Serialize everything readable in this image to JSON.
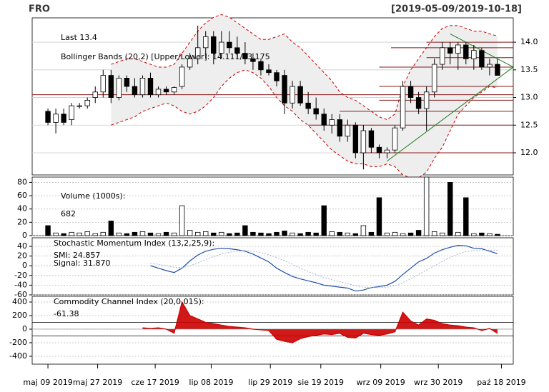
{
  "chart_data": [
    {
      "type": "candlestick",
      "title": "FRO",
      "subtitle": "[2019-05-09/2019-10-18]",
      "annotations": [
        "Last 13.4",
        "Bollinger Bands (20,2) [Upper/Lower]: 14.111/13.175"
      ],
      "open": [
        12.75,
        12.55,
        12.7,
        12.6,
        12.85,
        12.85,
        13.0,
        13.1,
        13.4,
        13.0,
        13.35,
        13.2,
        13.05,
        13.35,
        13.05,
        13.15,
        13.1,
        13.2,
        13.55,
        13.7,
        13.9,
        14.1,
        13.8,
        14.0,
        13.9,
        13.8,
        13.7,
        13.65,
        13.5,
        13.45,
        13.4,
        12.9,
        13.2,
        12.9,
        12.8,
        12.7,
        12.5,
        12.6,
        12.3,
        12.5,
        12.0,
        12.4,
        12.1,
        12.0,
        12.05,
        12.45,
        13.2,
        13.0,
        12.8,
        13.1,
        13.6,
        13.9,
        13.8,
        13.95,
        13.7,
        13.85,
        13.55,
        13.6
      ],
      "high": [
        12.8,
        12.8,
        12.8,
        12.9,
        12.9,
        13.0,
        13.2,
        13.5,
        13.5,
        13.4,
        13.4,
        13.35,
        13.4,
        13.45,
        13.2,
        13.2,
        13.2,
        13.6,
        13.8,
        14.3,
        14.2,
        14.2,
        14.2,
        14.2,
        14.1,
        14.0,
        13.8,
        13.7,
        13.6,
        13.5,
        13.5,
        13.3,
        13.3,
        13.1,
        13.0,
        12.8,
        12.7,
        12.7,
        12.6,
        12.55,
        12.5,
        12.45,
        12.15,
        12.1,
        12.5,
        13.3,
        13.3,
        13.1,
        13.2,
        13.7,
        14.0,
        14.0,
        14.0,
        14.0,
        13.95,
        13.9,
        13.7,
        13.7
      ],
      "low": [
        12.5,
        12.35,
        12.5,
        12.5,
        12.8,
        12.8,
        12.9,
        13.0,
        12.9,
        12.95,
        13.1,
        13.0,
        13.0,
        13.0,
        13.0,
        13.05,
        13.05,
        13.15,
        13.5,
        13.6,
        13.7,
        13.6,
        13.7,
        13.8,
        13.7,
        13.6,
        13.5,
        13.4,
        13.4,
        13.2,
        12.7,
        12.8,
        12.85,
        12.7,
        12.6,
        12.4,
        12.35,
        12.2,
        12.2,
        11.9,
        11.7,
        12.0,
        11.9,
        11.9,
        12.0,
        12.4,
        12.9,
        12.7,
        12.4,
        13.0,
        13.5,
        13.6,
        13.5,
        13.6,
        13.5,
        13.5,
        13.4,
        13.4
      ],
      "close": [
        12.55,
        12.7,
        12.55,
        12.85,
        12.85,
        12.95,
        13.1,
        13.4,
        13.0,
        13.35,
        13.2,
        13.05,
        13.35,
        13.05,
        13.15,
        13.1,
        13.18,
        13.55,
        13.7,
        13.9,
        14.1,
        13.8,
        14.0,
        13.9,
        13.8,
        13.7,
        13.65,
        13.5,
        13.45,
        13.3,
        12.9,
        13.2,
        12.9,
        12.8,
        12.7,
        12.5,
        12.6,
        12.3,
        12.5,
        12.0,
        12.4,
        12.1,
        12.0,
        12.05,
        12.45,
        13.2,
        13.0,
        12.8,
        13.1,
        13.6,
        13.9,
        13.8,
        13.95,
        13.7,
        13.85,
        13.55,
        13.6,
        13.4
      ],
      "bb_upper": [
        null,
        null,
        null,
        null,
        null,
        null,
        null,
        null,
        13.6,
        13.65,
        13.7,
        13.7,
        13.65,
        13.6,
        13.55,
        13.55,
        13.6,
        13.8,
        14.0,
        14.2,
        14.35,
        14.45,
        14.5,
        14.45,
        14.35,
        14.25,
        14.15,
        14.05,
        14.05,
        14.1,
        14.15,
        14.0,
        13.9,
        13.75,
        13.6,
        13.45,
        13.3,
        13.1,
        13.0,
        12.95,
        12.85,
        12.75,
        12.65,
        12.6,
        12.7,
        13.2,
        13.5,
        13.7,
        13.9,
        14.1,
        14.25,
        14.3,
        14.3,
        14.25,
        14.2,
        14.2,
        14.15,
        14.111
      ],
      "bb_lower": [
        null,
        null,
        null,
        null,
        null,
        null,
        null,
        null,
        12.5,
        12.55,
        12.6,
        12.65,
        12.75,
        12.8,
        12.85,
        12.9,
        12.85,
        12.75,
        12.7,
        12.75,
        12.85,
        13.0,
        13.2,
        13.35,
        13.45,
        13.5,
        13.45,
        13.35,
        13.2,
        13.0,
        12.85,
        12.75,
        12.6,
        12.5,
        12.35,
        12.2,
        12.05,
        11.95,
        11.85,
        11.8,
        11.8,
        11.75,
        11.75,
        11.8,
        11.75,
        11.6,
        11.55,
        11.55,
        11.65,
        11.9,
        12.1,
        12.4,
        12.7,
        12.85,
        13.0,
        13.1,
        13.2,
        13.175
      ],
      "levels": [
        {
          "value": 13.05,
          "from": -2
        },
        {
          "value": 12.5,
          "from": 33
        },
        {
          "value": 12.0,
          "from": 39.5
        },
        {
          "value": 12.75,
          "from": 37
        },
        {
          "value": 12.95,
          "from": 42
        },
        {
          "value": 13.2,
          "from": 42
        },
        {
          "value": 13.55,
          "from": 42
        },
        {
          "value": 13.72,
          "from": 48
        },
        {
          "value": 13.9,
          "from": 43.5
        },
        {
          "value": 14.0,
          "from": 48
        }
      ],
      "trend_lines": [
        {
          "x": [
            43,
            59
          ],
          "y": [
            11.85,
            13.55
          ]
        },
        {
          "x": [
            51,
            59
          ],
          "y": [
            14.15,
            13.55
          ]
        }
      ],
      "up_color": "#ffffff",
      "down_color": "#000000",
      "band_color": "#cc0000",
      "level_color": "#8b1a1a",
      "trend_color": "#1a7a1a",
      "xlim": [
        -2,
        59
      ],
      "ylim": [
        11.6,
        14.44
      ],
      "yticks": [
        {
          "value": 12,
          "label": "12.0"
        },
        12.5,
        {
          "value": 13,
          "label": "13.0"
        },
        13.5,
        {
          "value": 14,
          "label": "14.0"
        }
      ]
    },
    {
      "type": "bar",
      "annotations": [
        "Volume (1000s):",
        "682"
      ],
      "values": [
        15,
        4,
        3,
        5,
        4,
        6,
        3,
        5,
        22,
        4,
        3,
        5,
        6,
        4,
        3,
        5,
        4,
        45,
        8,
        5,
        6,
        4,
        5,
        3,
        4,
        15,
        5,
        4,
        3,
        5,
        7,
        4,
        3,
        5,
        4,
        45,
        6,
        5,
        4,
        3,
        15,
        5,
        57,
        4,
        5,
        3,
        4,
        8,
        88,
        6,
        4,
        80,
        5,
        57,
        3,
        4,
        3,
        2
      ],
      "xlim": [
        -2,
        59
      ],
      "ylim": [
        0,
        88
      ],
      "yticks": [
        0,
        20,
        40,
        60,
        80
      ]
    },
    {
      "type": "line",
      "title": "Stochastic Momentum Index (13,2,25,9):",
      "series": [
        {
          "name": "SMI: 24.857",
          "color": "#1f4fa8",
          "values": [
            null,
            null,
            null,
            null,
            null,
            null,
            null,
            null,
            null,
            null,
            null,
            null,
            null,
            0,
            -5,
            -10,
            -14,
            -5,
            10,
            22,
            30,
            34,
            36,
            35,
            33,
            30,
            24,
            16,
            8,
            -5,
            -14,
            -22,
            -27,
            -31,
            -35,
            -40,
            -42,
            -44,
            -46,
            -52,
            -50,
            -45,
            -43,
            -40,
            -32,
            -18,
            -5,
            8,
            15,
            26,
            33,
            38,
            42,
            41,
            36,
            35,
            30,
            24.857
          ]
        },
        {
          "name": "Signal: 31.870",
          "color": "#a9b4d6",
          "values": [
            null,
            null,
            null,
            null,
            null,
            null,
            null,
            null,
            null,
            null,
            null,
            null,
            null,
            5,
            3,
            0,
            -3,
            -4,
            0,
            6,
            13,
            19,
            24,
            28,
            30,
            31,
            30,
            27,
            23,
            17,
            10,
            3,
            -5,
            -12,
            -18,
            -24,
            -29,
            -33,
            -37,
            -41,
            -44,
            -45,
            -45,
            -44,
            -41,
            -35,
            -27,
            -18,
            -9,
            0,
            9,
            17,
            24,
            29,
            31,
            32,
            32,
            31.87
          ]
        }
      ],
      "xlim": [
        -2,
        59
      ],
      "ylim": [
        -60,
        57.6
      ],
      "yticks": [
        -60,
        -40,
        -20,
        0,
        20,
        40
      ]
    },
    {
      "type": "line",
      "title": "Commodity Channel Index (20,0.015):",
      "series": [
        {
          "name": "-61.38",
          "color": "#cc0000",
          "values": [
            null,
            null,
            null,
            null,
            null,
            null,
            null,
            null,
            null,
            null,
            null,
            null,
            20,
            10,
            20,
            0,
            -60,
            400,
            200,
            150,
            100,
            80,
            60,
            40,
            30,
            20,
            0,
            -10,
            -20,
            -150,
            -180,
            -200,
            -140,
            -110,
            -90,
            -70,
            -80,
            -60,
            -120,
            -130,
            -60,
            -80,
            -90,
            -70,
            -40,
            250,
            120,
            60,
            150,
            130,
            80,
            60,
            50,
            30,
            20,
            -20,
            10,
            -61.38
          ]
        }
      ],
      "reference_lines": [
        100,
        -100
      ],
      "fill": true,
      "xlim": [
        -2,
        59
      ],
      "ylim": [
        -516,
        484
      ],
      "yticks": [
        -400,
        -200,
        0,
        200,
        400
      ],
      "xticks": [
        {
          "value": 0,
          "label": "maj 09 2019"
        },
        {
          "value": 6.3,
          "label": "maj 27 2019"
        },
        {
          "value": 13.6,
          "label": "cze 17 2019"
        },
        {
          "value": 20.7,
          "label": "lip 08 2019"
        },
        {
          "value": 28.2,
          "label": "lip 29 2019"
        },
        {
          "value": 34.6,
          "label": "sie 19 2019"
        },
        {
          "value": 42.2,
          "label": "wrz 09 2019"
        },
        {
          "value": 49.5,
          "label": "wrz 30 2019"
        },
        {
          "value": 57.5,
          "label": "paź 18 2019"
        }
      ]
    }
  ]
}
